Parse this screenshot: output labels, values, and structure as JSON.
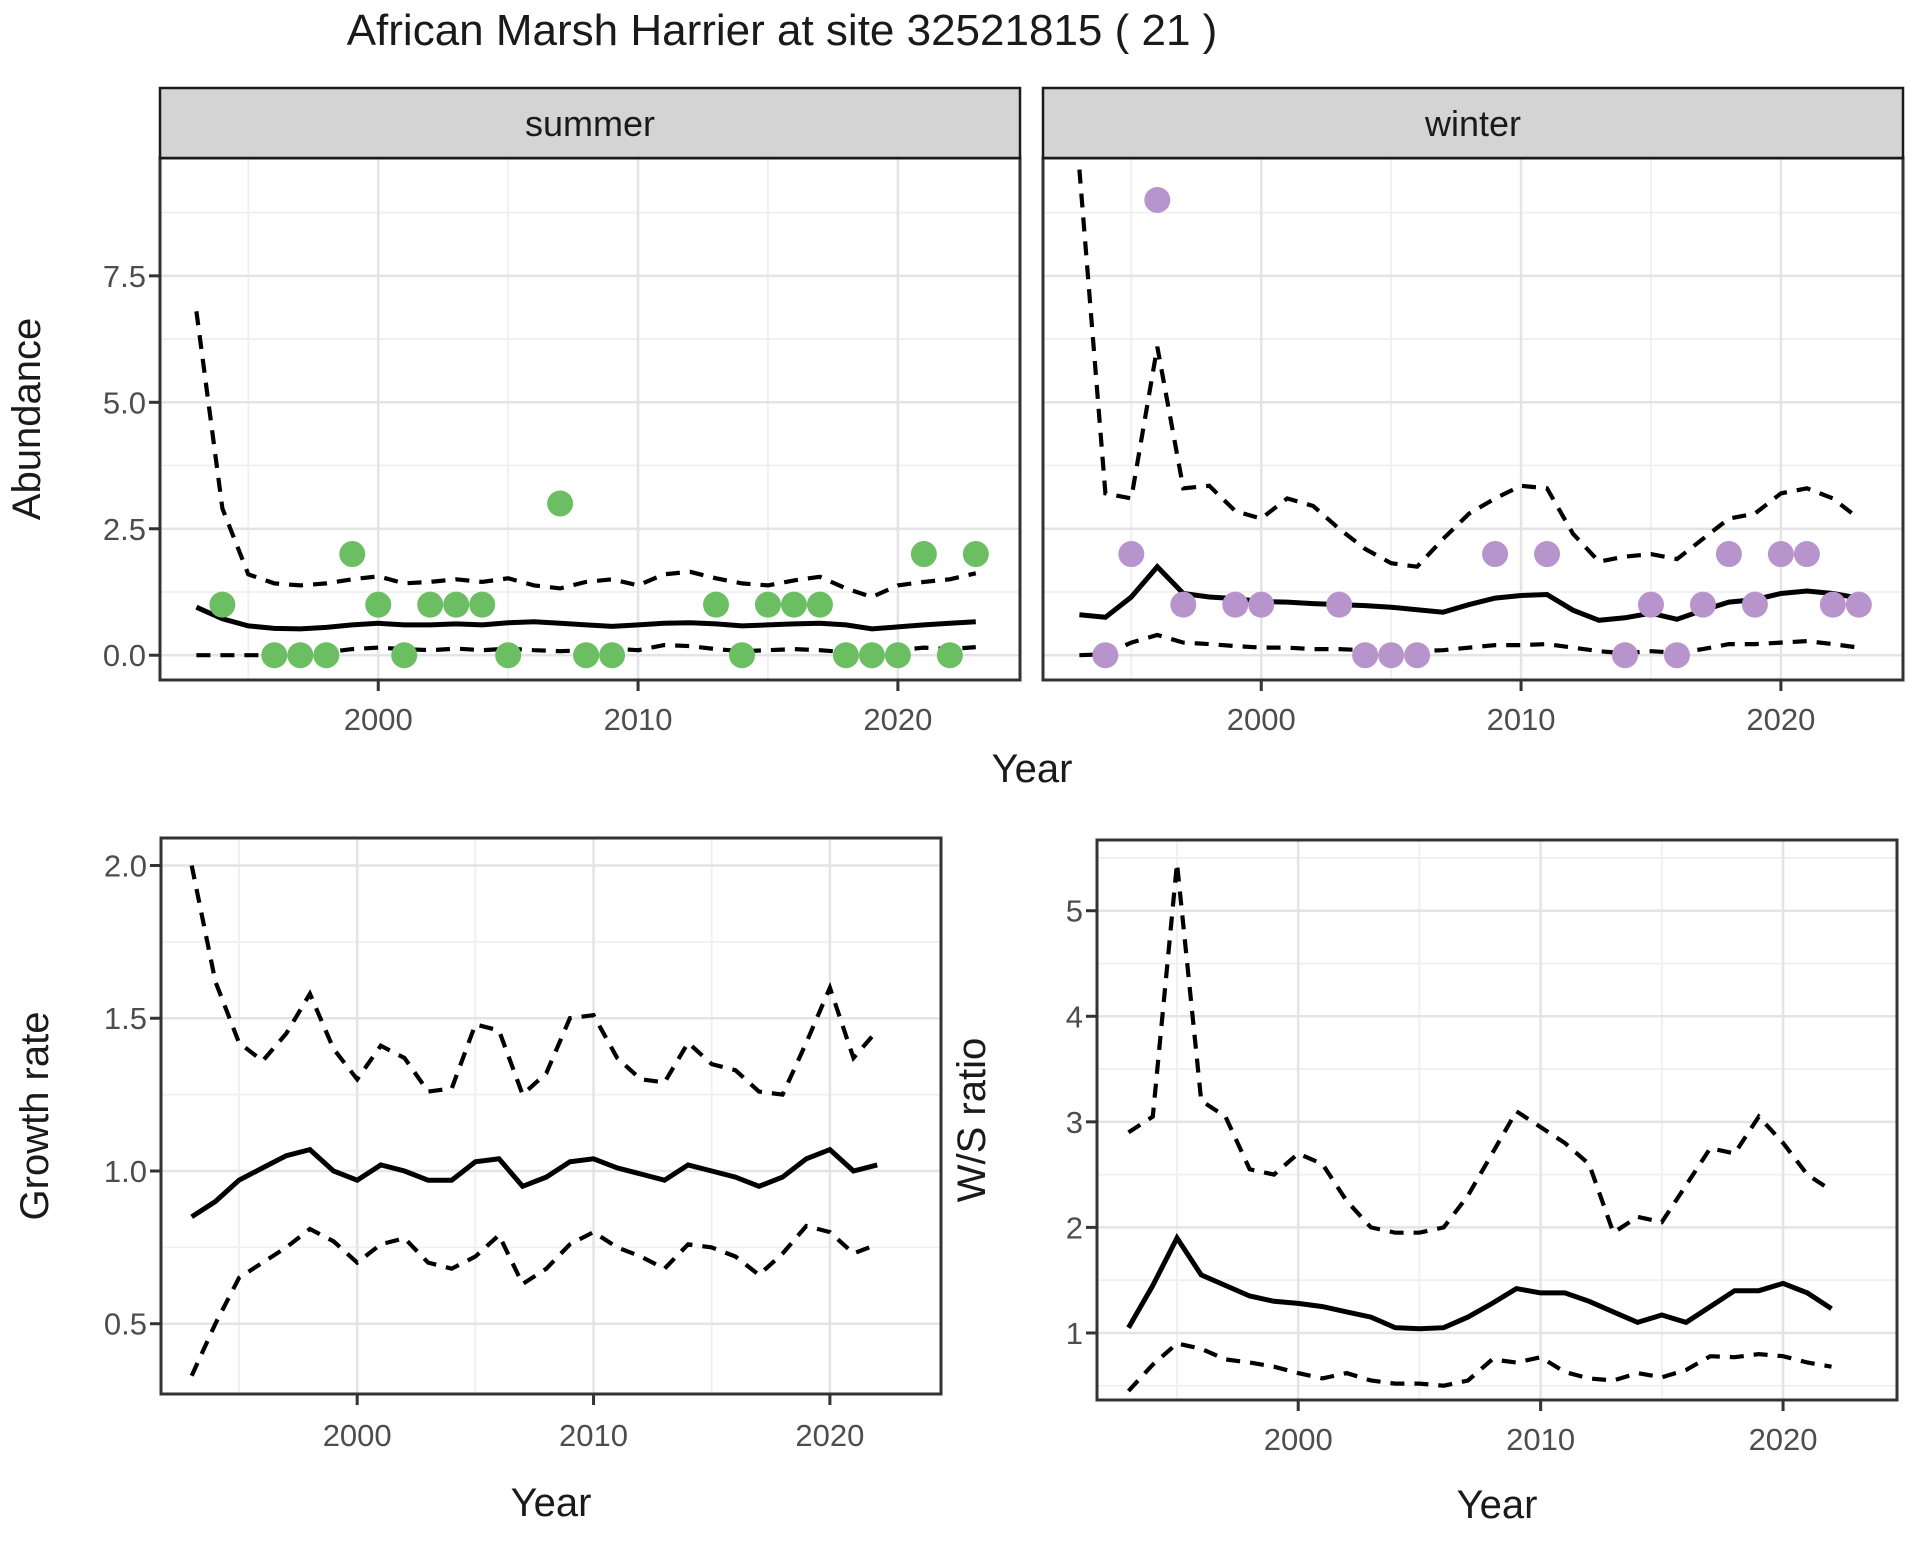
{
  "title": "African Marsh Harrier at site 32521815 ( 21 )",
  "colors": {
    "summer_point": "#6BBE62",
    "winter_point": "#B794CB",
    "line": "#000000",
    "strip_bg": "#D4D4D4",
    "strip_border": "#1A1A1A",
    "panel_border": "#333333",
    "grid_major": "#E4E4E4",
    "grid_minor": "#EFEFEF",
    "tick_mark": "#333333",
    "tick_label": "#4D4D4D",
    "text": "#1A1A1A"
  },
  "chart_data": [
    {
      "id": "abundance",
      "type": "line",
      "ylabel": "Abundance",
      "xlabel": "Year",
      "xlim": [
        1991.6,
        2024.7
      ],
      "ylim": [
        -0.49,
        9.83
      ],
      "xticks": {
        "values": [
          2000,
          2010,
          2020
        ],
        "labels": [
          "2000",
          "2010",
          "2020"
        ]
      },
      "yticks": {
        "values": [
          0,
          2.5,
          5,
          7.5
        ],
        "labels": [
          "0.0",
          "2.5",
          "5.0",
          "7.5"
        ]
      },
      "series_styles": {
        "median": "solid",
        "upper": "dashed",
        "lower": "dashed"
      },
      "years": [
        1993,
        1994,
        1995,
        1996,
        1997,
        1998,
        1999,
        2000,
        2001,
        2002,
        2003,
        2004,
        2005,
        2006,
        2007,
        2008,
        2009,
        2010,
        2011,
        2012,
        2013,
        2014,
        2015,
        2016,
        2017,
        2018,
        2019,
        2020,
        2021,
        2022,
        2023
      ],
      "facets": [
        {
          "label": "summer",
          "point_color_key": "summer_point",
          "median": [
            0.95,
            0.72,
            0.58,
            0.53,
            0.52,
            0.55,
            0.6,
            0.63,
            0.6,
            0.6,
            0.62,
            0.6,
            0.64,
            0.66,
            0.63,
            0.6,
            0.57,
            0.6,
            0.63,
            0.64,
            0.62,
            0.58,
            0.6,
            0.62,
            0.63,
            0.6,
            0.52,
            0.56,
            0.6,
            0.63,
            0.66
          ],
          "upper": [
            6.8,
            2.9,
            1.6,
            1.42,
            1.38,
            1.42,
            1.5,
            1.56,
            1.42,
            1.45,
            1.5,
            1.45,
            1.52,
            1.38,
            1.32,
            1.45,
            1.5,
            1.38,
            1.6,
            1.65,
            1.52,
            1.42,
            1.38,
            1.48,
            1.55,
            1.32,
            1.15,
            1.38,
            1.45,
            1.5,
            1.62
          ],
          "lower": [
            0.0,
            0.0,
            0.0,
            0.0,
            0.02,
            0.06,
            0.12,
            0.15,
            0.12,
            0.1,
            0.13,
            0.1,
            0.13,
            0.1,
            0.08,
            0.1,
            0.13,
            0.1,
            0.2,
            0.18,
            0.12,
            0.08,
            0.1,
            0.12,
            0.1,
            0.06,
            0.04,
            0.1,
            0.15,
            0.12,
            0.16
          ],
          "observations": [
            [
              1994,
              1
            ],
            [
              1996,
              0
            ],
            [
              1997,
              0
            ],
            [
              1998,
              0
            ],
            [
              1999,
              2
            ],
            [
              2000,
              1
            ],
            [
              2001,
              0
            ],
            [
              2002,
              1
            ],
            [
              2003,
              1
            ],
            [
              2004,
              1
            ],
            [
              2005,
              0
            ],
            [
              2007,
              3
            ],
            [
              2008,
              0
            ],
            [
              2009,
              0
            ],
            [
              2013,
              1
            ],
            [
              2014,
              0
            ],
            [
              2015,
              1
            ],
            [
              2016,
              1
            ],
            [
              2017,
              1
            ],
            [
              2018,
              0
            ],
            [
              2019,
              0
            ],
            [
              2020,
              0
            ],
            [
              2021,
              2
            ],
            [
              2022,
              0
            ],
            [
              2023,
              2
            ]
          ]
        },
        {
          "label": "winter",
          "point_color_key": "winter_point",
          "median": [
            0.8,
            0.75,
            1.15,
            1.75,
            1.22,
            1.15,
            1.12,
            1.06,
            1.05,
            1.02,
            1.0,
            0.98,
            0.95,
            0.9,
            0.85,
            1.0,
            1.13,
            1.18,
            1.2,
            0.89,
            0.69,
            0.74,
            0.83,
            0.71,
            0.89,
            1.05,
            1.1,
            1.22,
            1.27,
            1.22,
            1.13
          ],
          "upper": [
            9.6,
            3.2,
            3.1,
            6.1,
            3.3,
            3.35,
            2.85,
            2.7,
            3.1,
            2.95,
            2.5,
            2.1,
            1.82,
            1.75,
            2.3,
            2.8,
            3.1,
            3.35,
            3.3,
            2.4,
            1.85,
            1.95,
            2.0,
            1.9,
            2.3,
            2.7,
            2.8,
            3.2,
            3.3,
            3.1,
            2.7
          ],
          "lower": [
            0.0,
            0.02,
            0.25,
            0.4,
            0.25,
            0.22,
            0.18,
            0.15,
            0.15,
            0.12,
            0.12,
            0.1,
            0.1,
            0.08,
            0.1,
            0.15,
            0.2,
            0.2,
            0.22,
            0.15,
            0.08,
            0.04,
            0.08,
            0.05,
            0.12,
            0.22,
            0.22,
            0.25,
            0.28,
            0.22,
            0.15
          ],
          "observations": [
            [
              1994,
              0
            ],
            [
              1995,
              2
            ],
            [
              1996,
              9
            ],
            [
              1997,
              1
            ],
            [
              1999,
              1
            ],
            [
              2000,
              1
            ],
            [
              2003,
              1
            ],
            [
              2004,
              0
            ],
            [
              2005,
              0
            ],
            [
              2006,
              0
            ],
            [
              2009,
              2
            ],
            [
              2011,
              2
            ],
            [
              2014,
              0
            ],
            [
              2015,
              1
            ],
            [
              2016,
              0
            ],
            [
              2017,
              1
            ],
            [
              2018,
              2
            ],
            [
              2019,
              1
            ],
            [
              2020,
              2
            ],
            [
              2021,
              2
            ],
            [
              2022,
              1
            ],
            [
              2023,
              1
            ]
          ]
        }
      ]
    },
    {
      "id": "growth_rate",
      "type": "line",
      "ylabel": "Growth rate",
      "xlabel": "Year",
      "xlim": [
        1991.7,
        2024.7
      ],
      "ylim": [
        0.27,
        2.09
      ],
      "xticks": {
        "values": [
          2000,
          2010,
          2020
        ],
        "labels": [
          "2000",
          "2010",
          "2020"
        ]
      },
      "yticks": {
        "values": [
          0.5,
          1.0,
          1.5,
          2.0
        ],
        "labels": [
          "0.5",
          "1.0",
          "1.5",
          "2.0"
        ]
      },
      "series_styles": {
        "median": "solid",
        "upper": "dashed",
        "lower": "dashed"
      },
      "years": [
        1993,
        1994,
        1995,
        1996,
        1997,
        1998,
        1999,
        2000,
        2001,
        2002,
        2003,
        2004,
        2005,
        2006,
        2007,
        2008,
        2009,
        2010,
        2011,
        2012,
        2013,
        2014,
        2015,
        2016,
        2017,
        2018,
        2019,
        2020,
        2021,
        2022
      ],
      "series": {
        "median": [
          0.85,
          0.9,
          0.97,
          1.01,
          1.05,
          1.07,
          1.0,
          0.97,
          1.02,
          1.0,
          0.97,
          0.97,
          1.03,
          1.04,
          0.95,
          0.98,
          1.03,
          1.04,
          1.01,
          0.99,
          0.97,
          1.02,
          1.0,
          0.98,
          0.95,
          0.98,
          1.04,
          1.07,
          1.0,
          1.02
        ],
        "upper": [
          2.0,
          1.62,
          1.42,
          1.36,
          1.45,
          1.58,
          1.4,
          1.3,
          1.41,
          1.37,
          1.26,
          1.27,
          1.48,
          1.46,
          1.25,
          1.32,
          1.5,
          1.51,
          1.37,
          1.3,
          1.29,
          1.42,
          1.35,
          1.33,
          1.26,
          1.25,
          1.42,
          1.6,
          1.37,
          1.46
        ],
        "lower": [
          0.33,
          0.5,
          0.65,
          0.7,
          0.75,
          0.81,
          0.77,
          0.7,
          0.76,
          0.78,
          0.7,
          0.68,
          0.72,
          0.79,
          0.63,
          0.68,
          0.76,
          0.8,
          0.75,
          0.72,
          0.68,
          0.76,
          0.75,
          0.72,
          0.66,
          0.73,
          0.82,
          0.8,
          0.73,
          0.76
        ]
      }
    },
    {
      "id": "ws_ratio",
      "type": "line",
      "ylabel": "W/S ratio",
      "xlabel": "Year",
      "xlim": [
        1991.7,
        2024.7
      ],
      "ylim": [
        0.365,
        5.67
      ],
      "xticks": {
        "values": [
          2000,
          2010,
          2020
        ],
        "labels": [
          "2000",
          "2010",
          "2020"
        ]
      },
      "yticks": {
        "values": [
          1,
          2,
          3,
          4,
          5
        ],
        "labels": [
          "1",
          "2",
          "3",
          "4",
          "5"
        ]
      },
      "series_styles": {
        "median": "solid",
        "upper": "dashed",
        "lower": "dashed"
      },
      "years": [
        1993,
        1994,
        1995,
        1996,
        1997,
        1998,
        1999,
        2000,
        2001,
        2002,
        2003,
        2004,
        2005,
        2006,
        2007,
        2008,
        2009,
        2010,
        2011,
        2012,
        2013,
        2014,
        2015,
        2016,
        2017,
        2018,
        2019,
        2020,
        2021,
        2022
      ],
      "series": {
        "median": [
          1.05,
          1.45,
          1.9,
          1.55,
          1.45,
          1.35,
          1.3,
          1.28,
          1.25,
          1.2,
          1.15,
          1.05,
          1.04,
          1.05,
          1.15,
          1.28,
          1.42,
          1.38,
          1.38,
          1.3,
          1.2,
          1.1,
          1.17,
          1.1,
          1.25,
          1.4,
          1.4,
          1.47,
          1.38,
          1.23
        ],
        "upper": [
          2.9,
          3.05,
          5.45,
          3.2,
          3.05,
          2.55,
          2.5,
          2.7,
          2.6,
          2.25,
          2.0,
          1.95,
          1.95,
          2.0,
          2.3,
          2.7,
          3.1,
          2.95,
          2.8,
          2.6,
          1.95,
          2.1,
          2.05,
          2.4,
          2.75,
          2.7,
          3.05,
          2.8,
          2.5,
          2.35
        ],
        "lower": [
          0.45,
          0.7,
          0.9,
          0.85,
          0.75,
          0.72,
          0.68,
          0.62,
          0.57,
          0.62,
          0.55,
          0.52,
          0.52,
          0.5,
          0.55,
          0.75,
          0.72,
          0.77,
          0.63,
          0.57,
          0.55,
          0.62,
          0.58,
          0.65,
          0.78,
          0.77,
          0.8,
          0.78,
          0.72,
          0.68
        ]
      }
    }
  ]
}
